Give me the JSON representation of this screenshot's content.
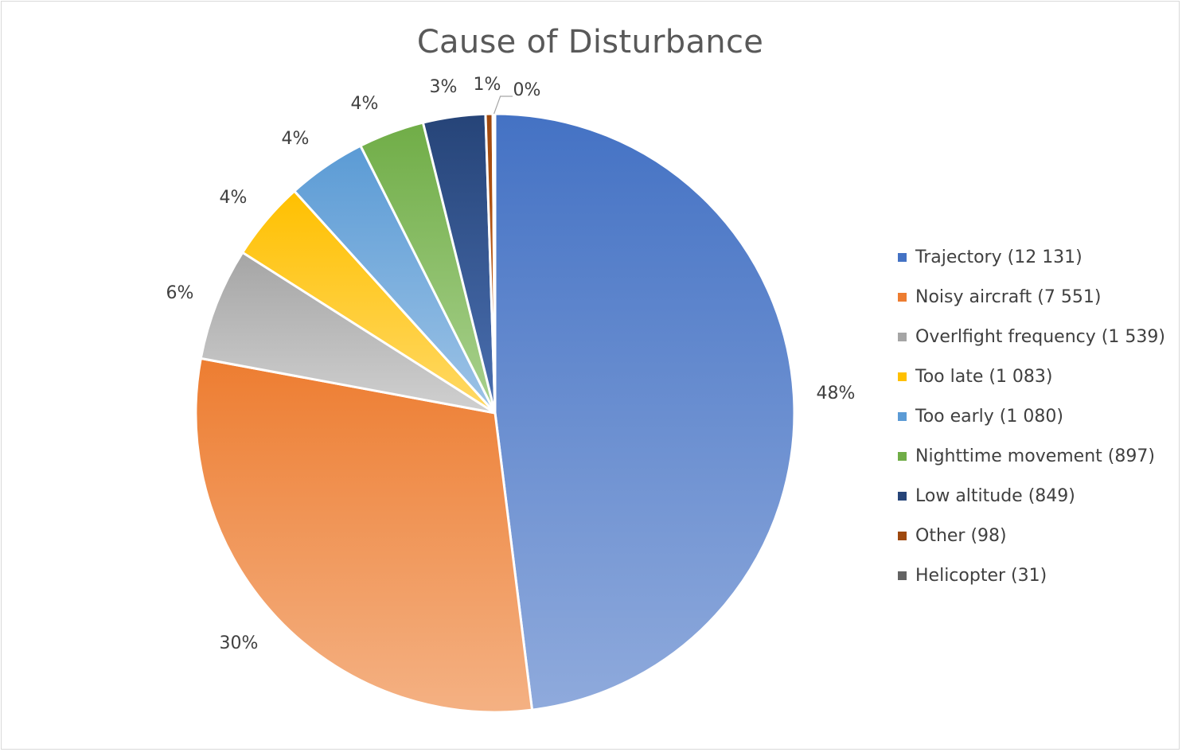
{
  "chart_data": {
    "type": "pie",
    "title": "Cause of Disturbance",
    "legend_position": "right",
    "slices": [
      {
        "label": "Trajectory (12 131)",
        "value": 12131,
        "percent_label": "48%",
        "color": "#4472C4",
        "light": "#8FAADC"
      },
      {
        "label": "Noisy aircraft (7 551)",
        "value": 7551,
        "percent_label": "30%",
        "color": "#ED7D31",
        "light": "#F4B183"
      },
      {
        "label": "Overlfight frequency (1 539)",
        "value": 1539,
        "percent_label": "6%",
        "color": "#A5A5A5",
        "light": "#D0D0D0"
      },
      {
        "label": "Too late (1 083)",
        "value": 1083,
        "percent_label": "4%",
        "color": "#FFC000",
        "light": "#FFD966"
      },
      {
        "label": "Too early (1 080)",
        "value": 1080,
        "percent_label": "4%",
        "color": "#5B9BD5",
        "light": "#9DC3E6"
      },
      {
        "label": "Nighttime movement (897)",
        "value": 897,
        "percent_label": "4%",
        "color": "#70AD47",
        "light": "#A9D18E"
      },
      {
        "label": "Low altitude (849)",
        "value": 849,
        "percent_label": "3%",
        "color": "#264478",
        "light": "#4A6FB0"
      },
      {
        "label": "Other (98)",
        "value": 98,
        "percent_label": "1%",
        "color": "#9E480E",
        "light": "#D2691E"
      },
      {
        "label": "Helicopter (31)",
        "value": 31,
        "percent_label": "0%",
        "color": "#636363",
        "light": "#8C8C8C"
      }
    ]
  }
}
